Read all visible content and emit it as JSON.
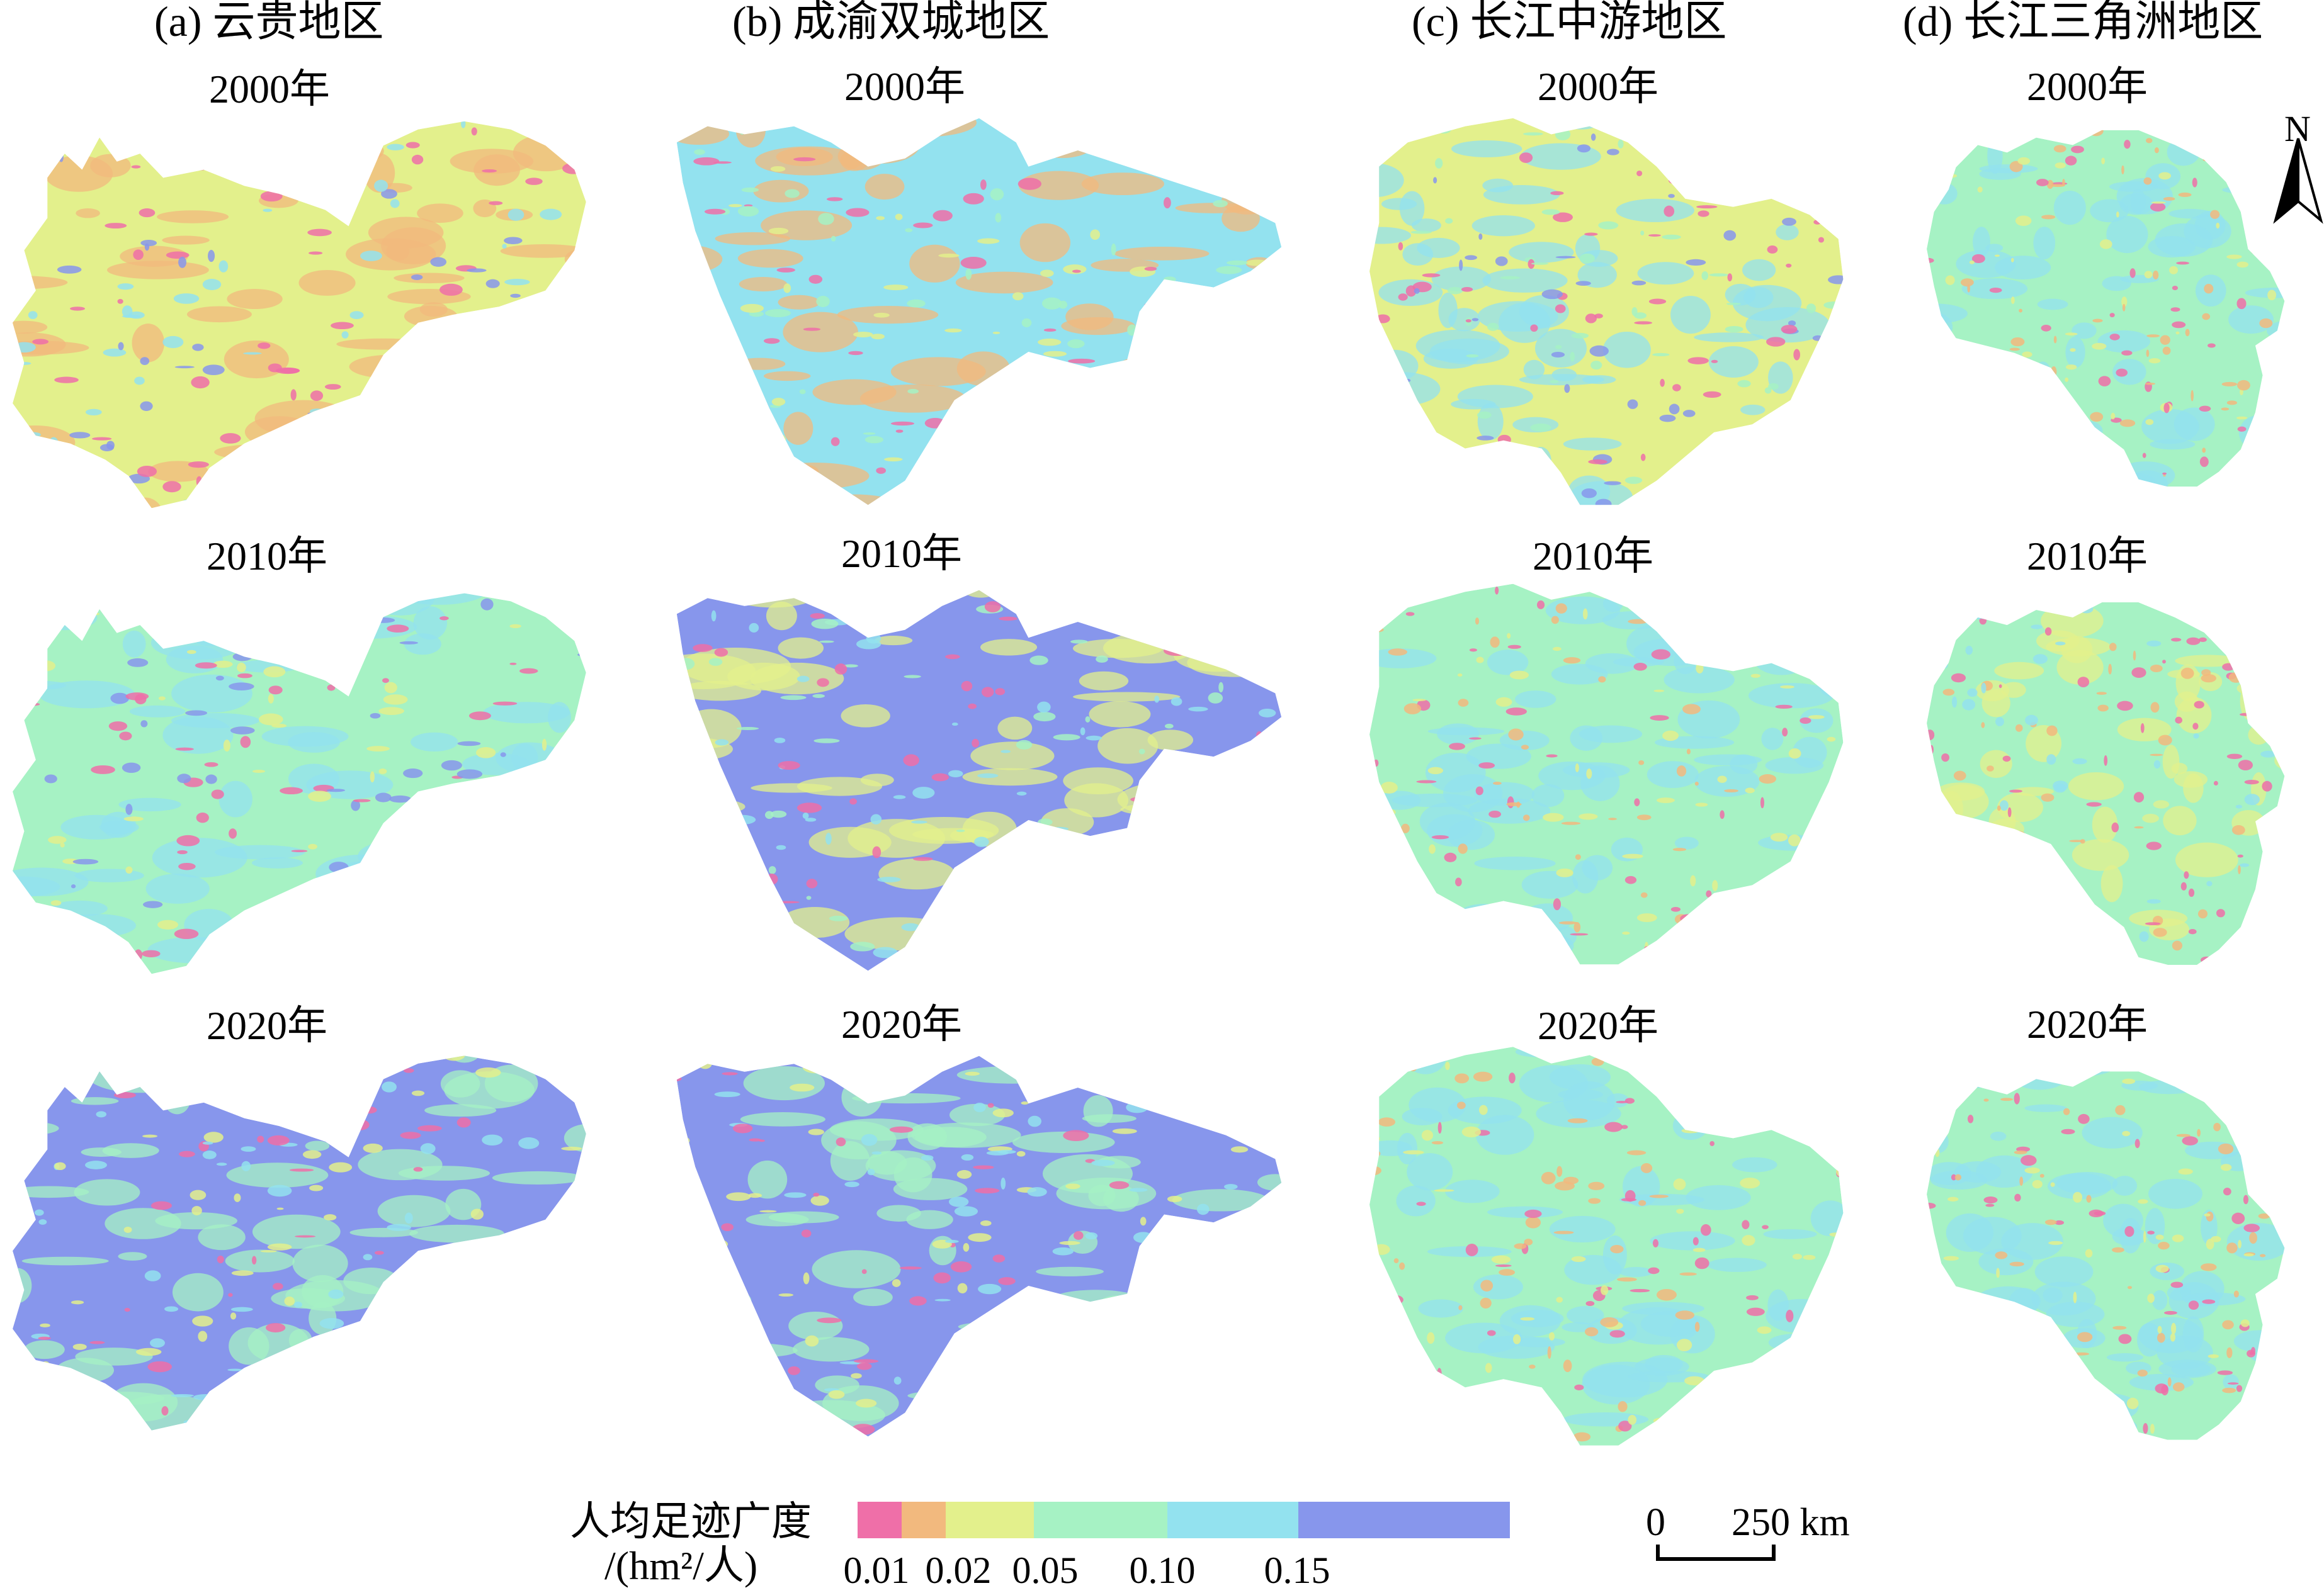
{
  "columns": [
    {
      "label": "(a) 云贵地区"
    },
    {
      "label": "(b) 成渝双城地区"
    },
    {
      "label": "(c) 长江中游地区"
    },
    {
      "label": "(d) 长江三角洲地区"
    }
  ],
  "years": [
    "2000年",
    "2010年",
    "2020年"
  ],
  "north_label": "N",
  "legend": {
    "title_line1": "人均足迹广度",
    "title_line2": "/(hm²/人)",
    "classes": [
      {
        "color": "#ef6fa8"
      },
      {
        "color": "#f2b97e"
      },
      {
        "color": "#e3f08c"
      },
      {
        "color": "#a6f2c4"
      },
      {
        "color": "#93e2ef"
      },
      {
        "color": "#8796ec"
      }
    ],
    "ticks": [
      "0.01",
      "0.02",
      "0.05",
      "0.10",
      "0.15"
    ]
  },
  "scale_bar": {
    "start": "0",
    "end": "250 km"
  },
  "maps": [
    [
      {
        "region": "云贵地区",
        "year": "2000年",
        "dominant": "#e3f08c",
        "secondary": "#f2b97e",
        "accents": [
          "#8796ec",
          "#93e2ef",
          "#ef6fa8"
        ]
      },
      {
        "region": "成渝双城地区",
        "year": "2000年",
        "dominant": "#93e2ef",
        "secondary": "#f2b97e",
        "accents": [
          "#a6f2c4",
          "#ef6fa8",
          "#e3f08c"
        ]
      },
      {
        "region": "长江中游地区",
        "year": "2000年",
        "dominant": "#e3f08c",
        "secondary": "#93e2ef",
        "accents": [
          "#a6f2c4",
          "#ef6fa8",
          "#8796ec"
        ]
      },
      {
        "region": "长江三角洲地区",
        "year": "2000年",
        "dominant": "#a6f2c4",
        "secondary": "#93e2ef",
        "accents": [
          "#e3f08c",
          "#f2b97e",
          "#ef6fa8"
        ]
      }
    ],
    [
      {
        "region": "云贵地区",
        "year": "2010年",
        "dominant": "#a6f2c4",
        "secondary": "#93e2ef",
        "accents": [
          "#8796ec",
          "#e3f08c",
          "#ef6fa8"
        ]
      },
      {
        "region": "成渝双城地区",
        "year": "2010年",
        "dominant": "#8796ec",
        "secondary": "#e3f08c",
        "accents": [
          "#93e2ef",
          "#ef6fa8",
          "#a6f2c4"
        ]
      },
      {
        "region": "长江中游地区",
        "year": "2010年",
        "dominant": "#a6f2c4",
        "secondary": "#93e2ef",
        "accents": [
          "#ef6fa8",
          "#f2b97e",
          "#e3f08c"
        ]
      },
      {
        "region": "长江三角洲地区",
        "year": "2010年",
        "dominant": "#a6f2c4",
        "secondary": "#e3f08c",
        "accents": [
          "#93e2ef",
          "#f2b97e",
          "#ef6fa8"
        ]
      }
    ],
    [
      {
        "region": "云贵地区",
        "year": "2020年",
        "dominant": "#8796ec",
        "secondary": "#a6f2c4",
        "accents": [
          "#93e2ef",
          "#ef6fa8",
          "#e3f08c"
        ]
      },
      {
        "region": "成渝双城地区",
        "year": "2020年",
        "dominant": "#8796ec",
        "secondary": "#a6f2c4",
        "accents": [
          "#93e2ef",
          "#ef6fa8",
          "#e3f08c"
        ]
      },
      {
        "region": "长江中游地区",
        "year": "2020年",
        "dominant": "#a6f2c4",
        "secondary": "#93e2ef",
        "accents": [
          "#f2b97e",
          "#ef6fa8",
          "#e3f08c"
        ]
      },
      {
        "region": "长江三角洲地区",
        "year": "2020年",
        "dominant": "#a6f2c4",
        "secondary": "#93e2ef",
        "accents": [
          "#e3f08c",
          "#f2b97e",
          "#ef6fa8"
        ]
      }
    ]
  ]
}
